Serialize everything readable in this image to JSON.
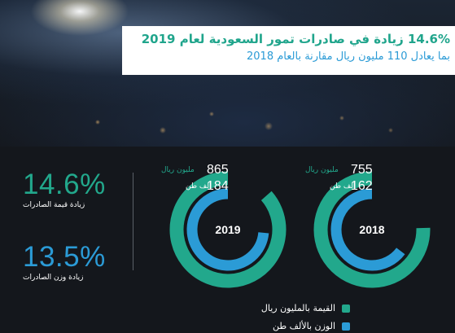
{
  "header": {
    "title": "14.6% زيادة في صادرات تمور السعودية لعام 2019",
    "subtitle": "بما يعادل 110 مليون ريال مقارنة بالعام 2018"
  },
  "stats": [
    {
      "value": "14.6%",
      "label": "زيادة قيمة الصادرات",
      "color": "#22a88c"
    },
    {
      "value": "13.5%",
      "label": "زيادة وزن الصادرات",
      "color": "#2b9bd6"
    }
  ],
  "legend": {
    "value_label": "القيمة بالمليون ريال",
    "weight_label": "الوزن بالألف طن"
  },
  "colors": {
    "value": "#22a88c",
    "weight": "#2b9bd6"
  },
  "chart_data": {
    "type": "donut",
    "years": [
      {
        "year": "2019",
        "value": 865,
        "value_unit": "مليون ريال",
        "weight": 184,
        "weight_unit": "الف طن"
      },
      {
        "year": "2018",
        "value": 755,
        "value_unit": "مليون ريال",
        "weight": 162,
        "weight_unit": "الف طن"
      }
    ],
    "legend": [
      "القيمة بالمليون ريال",
      "الوزن بالألف طن"
    ]
  }
}
